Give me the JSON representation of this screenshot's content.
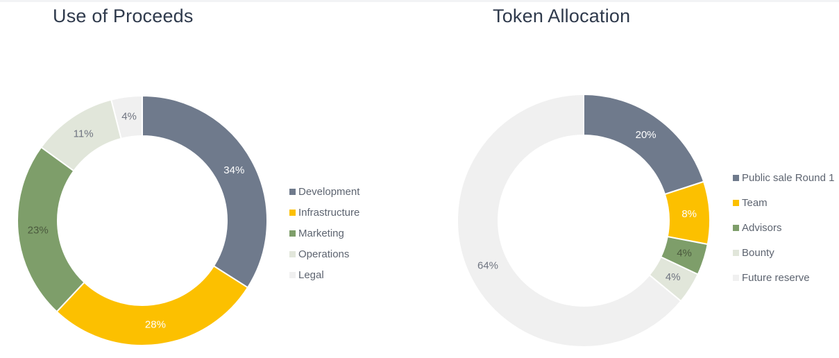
{
  "chart_data": [
    {
      "type": "pie",
      "title": "Use of Proceeds",
      "categories": [
        "Development",
        "Infrastructure",
        "Marketing",
        "Operations",
        "Legal"
      ],
      "values": [
        34,
        28,
        23,
        11,
        4
      ],
      "labels": [
        "34%",
        "28%",
        "23%",
        "11%",
        "4%"
      ],
      "colors": [
        "#6f7a8c",
        "#fcc000",
        "#7e9e6a",
        "#e1e6da",
        "#f0f0f0"
      ],
      "label_colors": [
        "#ffffff",
        "#ffffff",
        "#4b5a3e",
        "#6f7480",
        "#6f7480"
      ],
      "legend_position": "right"
    },
    {
      "type": "pie",
      "title": "Token Allocation",
      "categories": [
        "Public sale Round 1",
        "Team",
        "Advisors",
        "Bounty",
        "Future reserve"
      ],
      "values": [
        20,
        8,
        4,
        4,
        64
      ],
      "labels": [
        "20%",
        "8%",
        "4%",
        "4%",
        "64%"
      ],
      "colors": [
        "#6f7a8c",
        "#fcc000",
        "#7e9e6a",
        "#e1e6da",
        "#f0f0f0"
      ],
      "label_colors": [
        "#ffffff",
        "#ffffff",
        "#4b5a3e",
        "#6f7480",
        "#6f7480"
      ],
      "legend_position": "right"
    }
  ]
}
